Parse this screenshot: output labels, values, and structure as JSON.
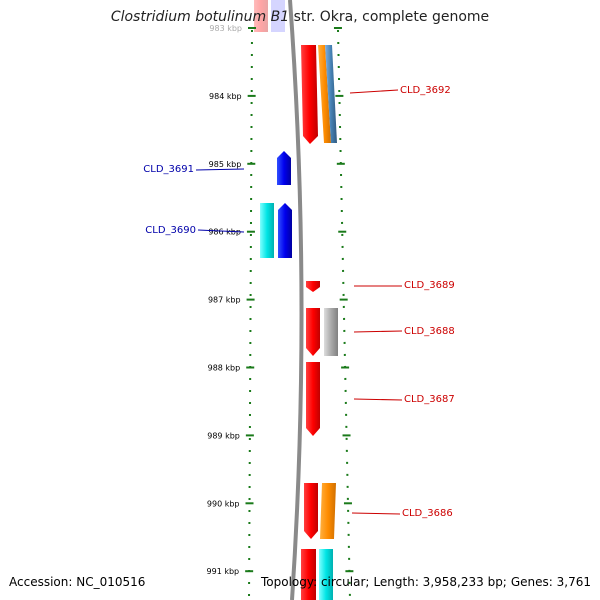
{
  "title": {
    "organism": "Clostridium botulinum B1",
    "strain": "str. Okra, complete genome"
  },
  "footer": {
    "accession": "Accession: NC_010516",
    "topology": "Topology: circular;",
    "length": "Length: 3,958,233 bp;",
    "genes": "Genes: 3,761"
  },
  "ruler": {
    "ticks_kbp": [
      983,
      984,
      985,
      986,
      987,
      988,
      989,
      990,
      991
    ],
    "tick_labels": [
      "983 kbp",
      "984 kbp",
      "985 kbp",
      "986 kbp",
      "987 kbp",
      "988 kbp",
      "989 kbp",
      "990 kbp",
      "991 kbp"
    ]
  },
  "gene_labels": [
    {
      "name": "CLD_3692",
      "strand": "minus",
      "color": "#cc0000"
    },
    {
      "name": "CLD_3691",
      "strand": "plus",
      "color": "#0000aa"
    },
    {
      "name": "CLD_3690",
      "strand": "plus",
      "color": "#0000aa"
    },
    {
      "name": "CLD_3689",
      "strand": "minus",
      "color": "#cc0000"
    },
    {
      "name": "CLD_3688",
      "strand": "minus",
      "color": "#cc0000"
    },
    {
      "name": "CLD_3687",
      "strand": "minus",
      "color": "#cc0000"
    },
    {
      "name": "CLD_3686",
      "strand": "minus",
      "color": "#cc0000"
    }
  ],
  "colors": {
    "ruler_dots": "#1a7a1a",
    "backbone": "#8a8a8a",
    "cds_plus": "#0000ee",
    "cds_minus": "#ff0000",
    "trna_cyan": "#00e5e5",
    "feature_orange": "#ff8c00",
    "feature_steelblue": "#4682b4",
    "feature_gray": "#a9a9a9"
  }
}
